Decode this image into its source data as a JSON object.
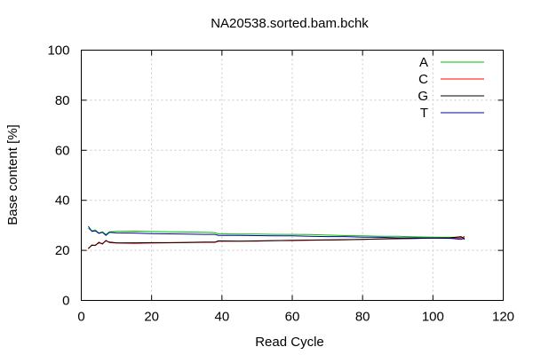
{
  "chart_data": {
    "type": "line",
    "title": "NA20538.sorted.bam.bchk",
    "xlabel": "Read Cycle",
    "ylabel": "Base content [%]",
    "xlim": [
      0,
      120
    ],
    "ylim": [
      0,
      100
    ],
    "xticks": [
      0,
      20,
      40,
      60,
      80,
      100,
      120
    ],
    "yticks": [
      0,
      20,
      40,
      60,
      80,
      100
    ],
    "grid": true,
    "legend_position": "top-right",
    "x": [
      2,
      3,
      4,
      5,
      6,
      7,
      8,
      10,
      15,
      20,
      25,
      30,
      35,
      38,
      39,
      45,
      50,
      55,
      60,
      65,
      70,
      75,
      80,
      85,
      90,
      95,
      100,
      105,
      108,
      109
    ],
    "series": [
      {
        "name": "A",
        "color": "#00c000",
        "values": [
          28.8,
          27.8,
          28.2,
          26.9,
          27.4,
          26.4,
          27.4,
          27.6,
          27.7,
          27.5,
          27.4,
          27.3,
          27.2,
          27.1,
          26.6,
          26.5,
          26.5,
          26.4,
          26.4,
          26.3,
          26.1,
          25.9,
          25.8,
          25.6,
          25.6,
          25.4,
          25.3,
          25.2,
          25.3,
          25.1
        ]
      },
      {
        "name": "C",
        "color": "#ff0000",
        "values": [
          20.6,
          22.2,
          21.9,
          23.3,
          22.5,
          24.0,
          23.1,
          22.9,
          22.8,
          22.9,
          23.0,
          23.1,
          23.2,
          23.2,
          23.6,
          23.7,
          23.7,
          23.9,
          23.9,
          24.0,
          24.1,
          24.2,
          24.4,
          24.5,
          24.6,
          24.7,
          24.9,
          24.9,
          24.9,
          25.6
        ]
      },
      {
        "name": "G",
        "color": "#000000",
        "values": [
          20.8,
          22.0,
          22.1,
          23.0,
          22.7,
          23.8,
          23.3,
          23.0,
          23.0,
          23.1,
          23.1,
          23.2,
          23.3,
          23.3,
          23.8,
          23.7,
          23.8,
          23.9,
          24.0,
          24.1,
          24.2,
          24.3,
          24.4,
          24.6,
          24.7,
          24.8,
          24.9,
          25.0,
          25.5,
          24.4
        ]
      },
      {
        "name": "T",
        "color": "#0000a0",
        "values": [
          29.6,
          27.6,
          27.8,
          26.8,
          27.2,
          26.0,
          27.2,
          27.0,
          26.9,
          26.7,
          26.6,
          26.5,
          26.4,
          26.4,
          26.0,
          26.0,
          25.9,
          25.8,
          25.8,
          25.6,
          25.5,
          25.5,
          25.3,
          25.2,
          25.0,
          25.0,
          24.9,
          24.8,
          24.4,
          24.9
        ]
      }
    ]
  }
}
